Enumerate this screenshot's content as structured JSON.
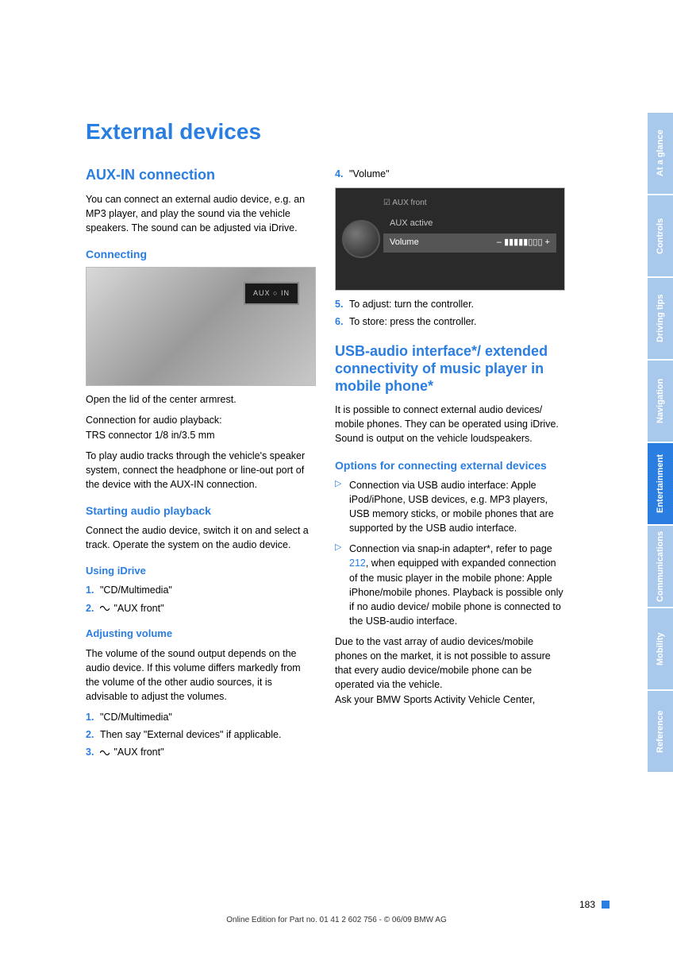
{
  "title": "External devices",
  "col1": {
    "h2_aux": "AUX-IN connection",
    "p_aux_intro": "You can connect an external audio device, e.g. an MP3 player, and play the sound via the vehicle speakers. The sound can be adjusted via iDrive.",
    "h3_connecting": "Connecting",
    "p_open_lid": "Open the lid of the center armrest.",
    "p_conn1": "Connection for audio playback:",
    "p_conn2": "TRS connector 1/8 in/3.5 mm",
    "p_play": "To play audio tracks through the vehicle's speaker system, connect the headphone or line-out port of the device with the AUX-IN connection.",
    "h3_start": "Starting audio playback",
    "p_start": "Connect the audio device, switch it on and select a track. Operate the system on the audio device.",
    "h4_idrive": "Using iDrive",
    "idrive_1": "\"CD/Multimedia\"",
    "idrive_2": "\"AUX front\"",
    "h4_volume": "Adjusting volume",
    "p_volume": "The volume of the sound output depends on the audio device. If this volume differs markedly from the volume of the other audio sources, it is advisable to adjust the volumes.",
    "vol_1": "\"CD/Multimedia\"",
    "vol_2": "Then say \"External devices\" if applicable.",
    "vol_3": "\"AUX front\""
  },
  "col2": {
    "step4": "\"Volume\"",
    "screen_header": "AUX front",
    "screen_line1": "AUX active",
    "screen_vol_label": "Volume",
    "screen_vol_bars": "– ▮▮▮▮▮▯▯▯ +",
    "step5": "To adjust: turn the controller.",
    "step6": "To store: press the controller.",
    "h2_usb": "USB-audio interface*/ extended connectivity of music player in mobile phone*",
    "p_usb": "It is possible to connect external audio devices/ mobile phones. They can be operated using iDrive. Sound is output on the vehicle loudspeakers.",
    "h3_options": "Options for connecting external devices",
    "opt1": "Connection via USB audio interface: Apple iPod/iPhone, USB devices, e.g. MP3 players, USB memory sticks, or mobile phones that are supported by the USB audio interface.",
    "opt2a": "Connection via snap-in adapter*, refer to page ",
    "opt2_link": "212",
    "opt2b": ", when equipped with expanded connection of the music player in the mobile phone: Apple iPhone/mobile phones. Playback is possible only if no audio device/ mobile phone is connected to the USB-audio interface.",
    "p_due1": "Due to the vast array of audio devices/mobile phones on the market, it is not possible to assure that every audio device/mobile phone can be operated via the vehicle.",
    "p_due2": "Ask your BMW Sports Activity Vehicle Center,"
  },
  "tabs": [
    {
      "label": "At a glance",
      "active": false
    },
    {
      "label": "Controls",
      "active": false
    },
    {
      "label": "Driving tips",
      "active": false
    },
    {
      "label": "Navigation",
      "active": false
    },
    {
      "label": "Entertainment",
      "active": true
    },
    {
      "label": "Communications",
      "active": false
    },
    {
      "label": "Mobility",
      "active": false
    },
    {
      "label": "Reference",
      "active": false
    }
  ],
  "page_number": "183",
  "footer": "Online Edition for Part no. 01 41 2 602 756 - © 06/09 BMW AG"
}
